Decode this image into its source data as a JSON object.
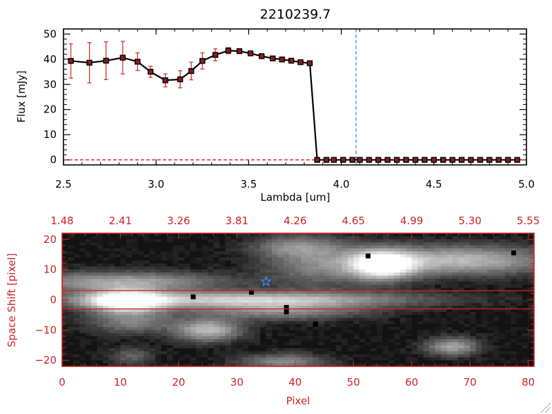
{
  "colors": {
    "data_line": "#000000",
    "marker_fill": "#8b1a1a",
    "error_bar": "#cc2222",
    "axis_red": "#cc2222",
    "cutoff_line": "#4a90c8",
    "baseline_dash": "#cc2222",
    "star": "#2f8fff"
  },
  "chart_data": [
    {
      "type": "scatter",
      "title": "2210239.7",
      "xlabel": "Lambda [um]",
      "ylabel": "Flux [mJy]",
      "xlim": [
        2.5,
        5.0
      ],
      "ylim": [
        -2,
        52
      ],
      "xticks": [
        2.5,
        3.0,
        3.5,
        4.0,
        4.5,
        5.0
      ],
      "xtick_labels": [
        "2.5",
        "3.0",
        "3.5",
        "4.0",
        "4.5",
        "5.0"
      ],
      "yticks": [
        0,
        10,
        20,
        30,
        40,
        50
      ],
      "ytick_labels": [
        "0",
        "10",
        "20",
        "30",
        "40",
        "50"
      ],
      "vertical_line_x": 4.08,
      "baseline_y": 0,
      "series": [
        {
          "x": [
            2.54,
            2.64,
            2.73,
            2.82,
            2.9,
            2.97,
            3.05,
            3.13,
            3.19,
            3.25,
            3.32,
            3.39,
            3.45,
            3.51,
            3.57,
            3.63,
            3.68,
            3.73,
            3.78,
            3.83,
            3.87,
            3.92,
            3.96,
            4.01,
            4.06,
            4.1,
            4.15,
            4.2,
            4.25,
            4.3,
            4.35,
            4.4,
            4.45,
            4.5,
            4.55,
            4.6,
            4.65,
            4.7,
            4.75,
            4.8,
            4.85,
            4.9,
            4.95
          ],
          "y": [
            39.3,
            38.6,
            39.4,
            40.6,
            39.0,
            35.0,
            31.6,
            32.0,
            35.3,
            39.3,
            41.7,
            43.4,
            43.2,
            42.3,
            41.2,
            40.3,
            39.9,
            39.4,
            38.8,
            38.4,
            0,
            0,
            0,
            0,
            0,
            0,
            0,
            0,
            0,
            0,
            0,
            0,
            0,
            0,
            0,
            0,
            0,
            0,
            0,
            0,
            0,
            0,
            0
          ],
          "yerr": [
            6.8,
            8.0,
            7.5,
            6.5,
            3.5,
            2.2,
            2.6,
            3.4,
            3.5,
            3.2,
            2.4,
            1.2,
            0.7,
            0.6,
            0.5,
            0.5,
            0.5,
            0.5,
            0.5,
            0.5,
            0,
            0,
            0,
            0,
            0,
            0,
            0,
            0,
            0,
            0,
            0,
            0,
            0,
            0,
            0,
            0,
            0,
            0,
            0,
            0,
            0,
            0,
            0
          ]
        }
      ]
    },
    {
      "type": "heatmap",
      "xlabel": "Pixel",
      "ylabel": "Space Shift [pixel]",
      "xlim": [
        0,
        81
      ],
      "ylim": [
        -22,
        22
      ],
      "xticks": [
        0,
        10,
        20,
        30,
        40,
        50,
        60,
        70,
        80
      ],
      "xtick_labels": [
        "0",
        "10",
        "20",
        "30",
        "40",
        "50",
        "60",
        "70",
        "80"
      ],
      "yticks": [
        -20,
        -10,
        0,
        10,
        20
      ],
      "ytick_labels": [
        "−20",
        "−10",
        "0",
        "10",
        "20"
      ],
      "top_ticks": [
        0,
        10,
        20,
        30,
        40,
        50,
        60,
        70,
        80
      ],
      "top_tick_labels": [
        "1.48",
        "2.41",
        "3.26",
        "3.81",
        "4.26",
        "4.65",
        "4.99",
        "5.30",
        "5.55"
      ],
      "aperture_lines_y": [
        3,
        -3
      ],
      "star": {
        "x": 35,
        "y": 6
      },
      "sources": [
        {
          "x": 11,
          "y": 0,
          "sx": 4.5,
          "sy": 2.6,
          "amp": 1.0
        },
        {
          "x": 30,
          "y": 0.6,
          "sx": 20,
          "sy": 1.8,
          "amp": 0.6
        },
        {
          "x": 10,
          "y": 6.5,
          "sx": 12,
          "sy": 2.2,
          "amp": 0.45
        },
        {
          "x": 55,
          "y": 12,
          "sx": 3.8,
          "sy": 3.2,
          "amp": 1.0
        },
        {
          "x": 68,
          "y": 13.5,
          "sx": 11,
          "sy": 3.2,
          "amp": 0.55
        },
        {
          "x": 44,
          "y": 12,
          "sx": 6,
          "sy": 5,
          "amp": 0.3
        },
        {
          "x": 25,
          "y": -9.5,
          "sx": 3.8,
          "sy": 2.5,
          "amp": 0.55
        },
        {
          "x": 12,
          "y": -7,
          "sx": 5,
          "sy": 2.5,
          "amp": 0.3
        },
        {
          "x": 37,
          "y": -3,
          "sx": 10,
          "sy": 2.2,
          "amp": 0.35
        },
        {
          "x": 40,
          "y": 18,
          "sx": 5,
          "sy": 2.5,
          "amp": 0.3
        },
        {
          "x": 67,
          "y": -15,
          "sx": 3,
          "sy": 2,
          "amp": 0.45
        },
        {
          "x": 38,
          "y": -20,
          "sx": 5,
          "sy": 1.8,
          "amp": 0.35
        },
        {
          "x": 12,
          "y": -18,
          "sx": 2.5,
          "sy": 2,
          "amp": 0.2
        }
      ],
      "dead_pixels": [
        {
          "x": 22.5,
          "y": 1
        },
        {
          "x": 32.5,
          "y": 2.5
        },
        {
          "x": 38.5,
          "y": -2.5
        },
        {
          "x": 38.5,
          "y": -4
        },
        {
          "x": 52.5,
          "y": 14.5
        },
        {
          "x": 77.5,
          "y": 15.5
        },
        {
          "x": 43.5,
          "y": -8
        }
      ]
    }
  ]
}
